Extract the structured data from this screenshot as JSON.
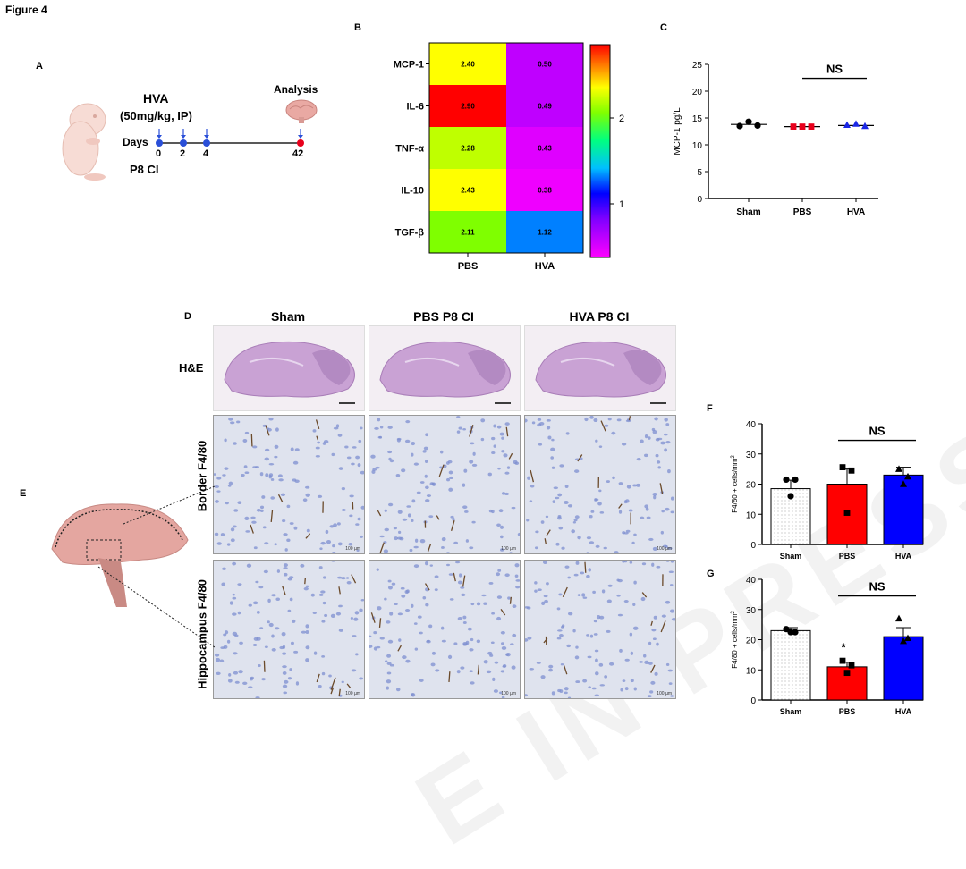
{
  "figure_title": "Figure 4",
  "panel_labels": {
    "a": "A",
    "b": "B",
    "c": "C",
    "d": "D",
    "e": "E",
    "f": "F",
    "g": "G"
  },
  "panel_a": {
    "drug": "HVA",
    "dose": "(50mg/kg, IP)",
    "days_label": "Days",
    "days": [
      "0",
      "2",
      "4",
      "42"
    ],
    "model": "P8 CI",
    "analysis": "Analysis"
  },
  "panel_d": {
    "columns": [
      "Sham",
      "PBS P8 CI",
      "HVA P8 CI"
    ],
    "rows": [
      "H&E",
      "Border F4/80",
      "Hippocampus F4/80"
    ],
    "scale_text": "100 µm"
  },
  "watermark": "E IN PRESS",
  "chart_data": [
    {
      "type": "heatmap",
      "id": "B",
      "rows": [
        "MCP-1",
        "IL-6",
        "TNF-α",
        "IL-10",
        "TGF-β"
      ],
      "columns": [
        "PBS",
        "HVA"
      ],
      "values": [
        [
          2.4,
          0.5
        ],
        [
          2.9,
          0.49
        ],
        [
          2.28,
          0.43
        ],
        [
          2.43,
          0.38
        ],
        [
          2.11,
          1.12
        ]
      ],
      "value_labels": [
        [
          "2.40",
          "0.50"
        ],
        [
          "2.90",
          "0.49"
        ],
        [
          "2.28",
          "0.43"
        ],
        [
          "2.43",
          "0.38"
        ],
        [
          "2.11",
          "1.12"
        ]
      ],
      "colorbar_ticks": [
        "2",
        "1"
      ],
      "colors": {
        "row_colors": [
          [
            "#ffff00",
            "#bf00ff"
          ],
          [
            "#ff0000",
            "#bf00ff"
          ],
          [
            "#bfff00",
            "#df00ff"
          ],
          [
            "#ffff00",
            "#ef00ff"
          ],
          [
            "#7fff00",
            "#0080ff"
          ]
        ]
      }
    },
    {
      "type": "scatter",
      "id": "C",
      "categories": [
        "Sham",
        "PBS",
        "HVA"
      ],
      "ylabel": "MCP-1 pg/L",
      "ylim": [
        0,
        25
      ],
      "yticks": [
        "0",
        "5",
        "10",
        "15",
        "20",
        "25"
      ],
      "means": [
        13.8,
        13.4,
        13.6
      ],
      "points": [
        [
          13.5,
          14.3,
          13.6
        ],
        [
          13.4,
          13.4,
          13.4
        ],
        [
          13.7,
          13.9,
          13.5
        ]
      ],
      "markers": [
        "circle",
        "square",
        "triangle"
      ],
      "colors": [
        "#000000",
        "#e8001c",
        "#1a27e6"
      ],
      "annotation": "NS"
    },
    {
      "type": "bar",
      "id": "F",
      "categories": [
        "Sham",
        "PBS",
        "HVA"
      ],
      "ylabel": "F4/80 + cells/mm",
      "ylabel_sup": "2",
      "ylim": [
        0,
        40
      ],
      "yticks": [
        "0",
        "10",
        "20",
        "30",
        "40"
      ],
      "values": [
        18.5,
        20,
        23
      ],
      "errors": [
        2.8,
        5,
        2.6
      ],
      "points": [
        [
          21.5,
          21.5,
          16
        ],
        [
          25.6,
          24.5,
          10.5
        ],
        [
          25,
          22.5,
          20
        ]
      ],
      "bar_colors": [
        "#ffffff",
        "#ff0000",
        "#0000ff"
      ],
      "markers": [
        "circle",
        "square",
        "triangle"
      ],
      "annotation": "NS"
    },
    {
      "type": "bar",
      "id": "G",
      "categories": [
        "Sham",
        "PBS",
        "HVA"
      ],
      "ylabel": "F4/80 + cells/mm",
      "ylabel_sup": "2",
      "ylim": [
        0,
        40
      ],
      "yticks": [
        "0",
        "10",
        "20",
        "30",
        "40"
      ],
      "values": [
        23,
        11,
        21
      ],
      "errors": [
        1,
        1.5,
        3
      ],
      "points": [
        [
          23.5,
          22.5,
          22.5
        ],
        [
          13,
          11.5,
          9
        ],
        [
          27,
          20.5,
          19.5
        ]
      ],
      "bar_colors": [
        "#ffffff",
        "#ff0000",
        "#0000ff"
      ],
      "markers": [
        "circle",
        "square",
        "triangle"
      ],
      "star": "*",
      "annotation": "NS"
    }
  ]
}
